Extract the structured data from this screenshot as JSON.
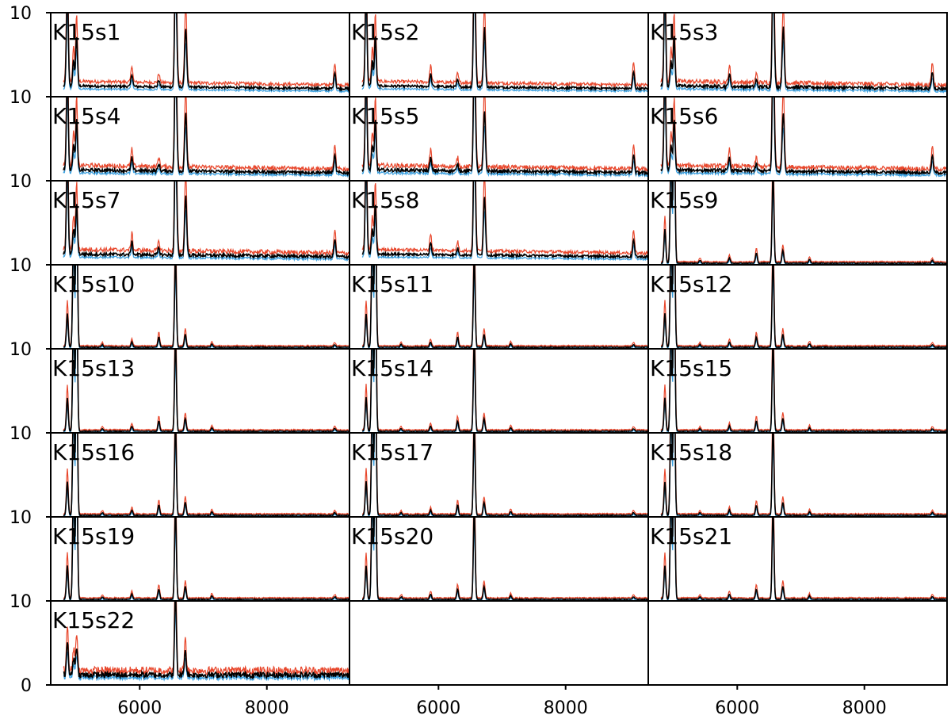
{
  "chart_data": {
    "type": "line",
    "layout": "grid",
    "rows": 8,
    "cols": 3,
    "xlim": [
      4600,
      9300
    ],
    "ylim": [
      0,
      10
    ],
    "x_ticks": [
      6000,
      8000
    ],
    "x_tick_labels": [
      "6000",
      "8000"
    ],
    "y_tick_labels_left": [
      "10",
      "10",
      "10",
      "10",
      "10",
      "10",
      "10",
      "10",
      "0"
    ],
    "series_colors": {
      "upper": "#e8472c",
      "lower": "#3aa0e0",
      "main": "#000000"
    },
    "panels": [
      {
        "label": "K15s1",
        "type": "lowexc",
        "noise": 0.15
      },
      {
        "label": "K15s2",
        "type": "lowexc",
        "noise": 0.15
      },
      {
        "label": "K15s3",
        "type": "lowexc",
        "noise": 0.2
      },
      {
        "label": "K15s4",
        "type": "lowexc",
        "noise": 0.2
      },
      {
        "label": "K15s5",
        "type": "lowexc",
        "noise": 0.2
      },
      {
        "label": "K15s6",
        "type": "lowexc",
        "noise": 0.2
      },
      {
        "label": "K15s7",
        "type": "lowexc",
        "noise": 0.2
      },
      {
        "label": "K15s8",
        "type": "lowexc",
        "noise": 0.15
      },
      {
        "label": "K15s9",
        "type": "highexc",
        "noise": 0.05
      },
      {
        "label": "K15s10",
        "type": "highexc",
        "noise": 0.05
      },
      {
        "label": "K15s11",
        "type": "highexc",
        "noise": 0.05
      },
      {
        "label": "K15s12",
        "type": "highexc",
        "noise": 0.05
      },
      {
        "label": "K15s13",
        "type": "highexc",
        "noise": 0.05
      },
      {
        "label": "K15s14",
        "type": "highexc",
        "noise": 0.05
      },
      {
        "label": "K15s15",
        "type": "highexc",
        "noise": 0.05
      },
      {
        "label": "K15s16",
        "type": "highexc",
        "noise": 0.05
      },
      {
        "label": "K15s17",
        "type": "highexc",
        "noise": 0.05
      },
      {
        "label": "K15s18",
        "type": "highexc",
        "noise": 0.05
      },
      {
        "label": "K15s19",
        "type": "highexc",
        "noise": 0.05
      },
      {
        "label": "K15s20",
        "type": "highexc",
        "noise": 0.05
      },
      {
        "label": "K15s21",
        "type": "highexc",
        "noise": 0.05
      },
      {
        "label": "K15s22",
        "type": "noisy",
        "noise": 0.35
      }
    ]
  }
}
